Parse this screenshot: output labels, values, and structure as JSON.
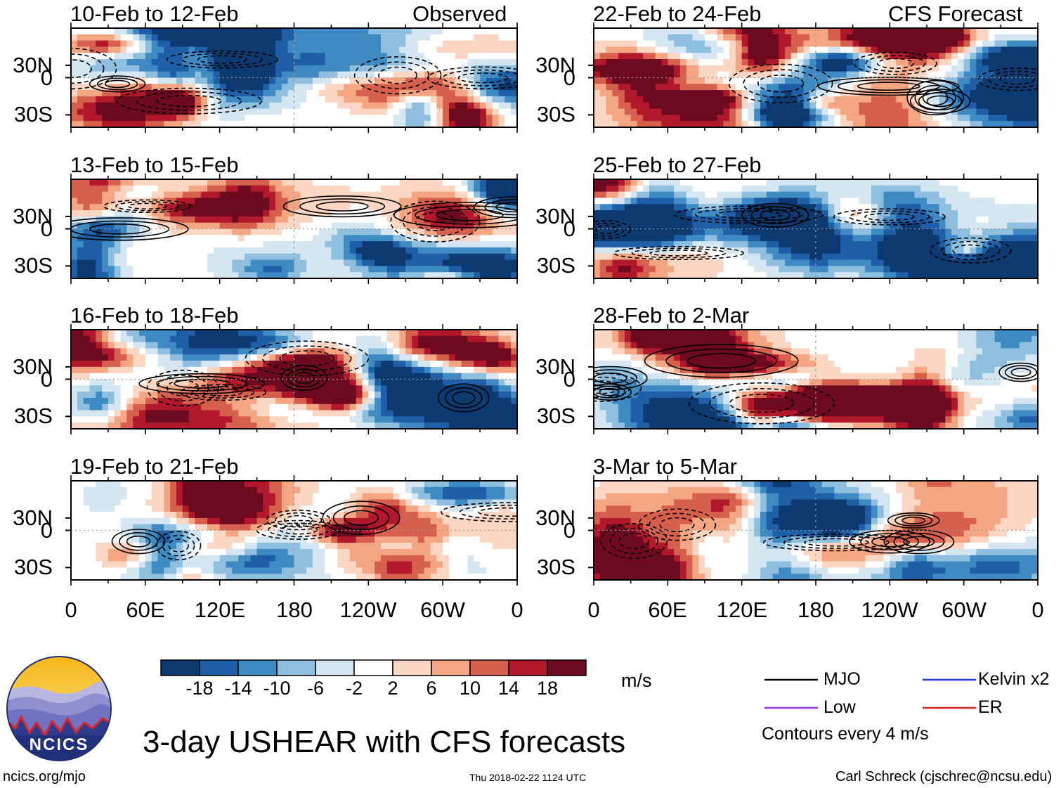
{
  "figure": {
    "title": "3-day USHEAR with CFS forecasts",
    "website": "ncics.org/mjo",
    "timestamp": "Thu 2018-02-22 1124 UTC",
    "author": "Carl Schreck (cjschrec@ncsu.edu)",
    "logo_text": "NCICS"
  },
  "labels": {
    "observed": "Observed",
    "forecast": "CFS Forecast"
  },
  "axes": {
    "y_ticks": [
      "30N",
      "0",
      "30S"
    ],
    "x_ticks": [
      "0",
      "60E",
      "120E",
      "180",
      "120W",
      "60W",
      "0"
    ],
    "lon_range_deg": [
      0,
      360
    ],
    "lat_range_deg": [
      -40,
      40
    ]
  },
  "colorbar": {
    "unit": "m/s",
    "ticks": [
      "-18",
      "-14",
      "-10",
      "-6",
      "-2",
      "2",
      "6",
      "10",
      "14",
      "18"
    ],
    "colors": [
      "#0d3a70",
      "#1f5fa8",
      "#3e8ac2",
      "#8fbfdf",
      "#d3e6f2",
      "#ffffff",
      "#fbd6c2",
      "#f4a582",
      "#d6604d",
      "#b2182b",
      "#6e0a1f"
    ]
  },
  "legend": {
    "items": [
      {
        "label": "MJO",
        "color": "#000000"
      },
      {
        "label": "Kelvin x2",
        "color": "#2233cc"
      },
      {
        "label": "Low",
        "color": "#9933ee"
      },
      {
        "label": "ER",
        "color": "#dd2222"
      }
    ],
    "contour_note": "Contours every 4 m/s"
  },
  "chart_data": {
    "type": "heatmap",
    "variable": "3-day mean zonal wind shear anomaly (USHEAR)",
    "unit": "m/s",
    "panels": [
      {
        "period": "10-Feb to 12-Feb",
        "source": "Observed",
        "column": "left",
        "row": 0
      },
      {
        "period": "13-Feb to 15-Feb",
        "source": "Observed",
        "column": "left",
        "row": 1
      },
      {
        "period": "16-Feb to 18-Feb",
        "source": "Observed",
        "column": "left",
        "row": 2
      },
      {
        "period": "19-Feb to 21-Feb",
        "source": "Observed",
        "column": "left",
        "row": 3
      },
      {
        "period": "22-Feb to 24-Feb",
        "source": "CFS Forecast",
        "column": "right",
        "row": 0
      },
      {
        "period": "25-Feb to 27-Feb",
        "source": "CFS Forecast",
        "column": "right",
        "row": 1
      },
      {
        "period": "28-Feb to 2-Mar",
        "source": "CFS Forecast",
        "column": "right",
        "row": 2
      },
      {
        "period": "3-Mar to 5-Mar",
        "source": "CFS Forecast",
        "column": "right",
        "row": 3
      }
    ]
  }
}
